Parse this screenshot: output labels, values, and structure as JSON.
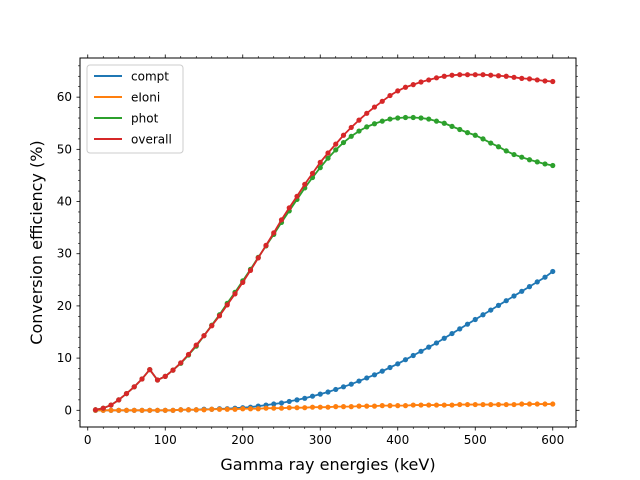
{
  "chart_data": {
    "type": "line",
    "xlabel": "Gamma ray energies (keV)",
    "ylabel": "Conversion efficiency (%)",
    "xlim": [
      -10,
      630
    ],
    "ylim": [
      -3.2,
      67.5
    ],
    "xticks": [
      "0",
      "100",
      "200",
      "300",
      "400",
      "500",
      "600"
    ],
    "yticks": [
      "0",
      "10",
      "20",
      "30",
      "40",
      "50",
      "60"
    ],
    "legend_position": "top-left",
    "grid": false,
    "x": [
      10,
      20,
      30,
      40,
      50,
      60,
      70,
      80,
      90,
      100,
      110,
      120,
      130,
      140,
      150,
      160,
      170,
      180,
      190,
      200,
      210,
      220,
      230,
      240,
      250,
      260,
      270,
      280,
      290,
      300,
      310,
      320,
      330,
      340,
      350,
      360,
      370,
      380,
      390,
      400,
      410,
      420,
      430,
      440,
      450,
      460,
      470,
      480,
      490,
      500,
      510,
      520,
      530,
      540,
      550,
      560,
      570,
      580,
      590,
      600
    ],
    "series": [
      {
        "name": "compt",
        "color": "#1f77b4",
        "values": [
          0.0,
          0.0,
          0.0,
          0.0,
          0.0,
          0.0,
          0.0,
          0.0,
          0.0,
          0.0,
          0.0,
          0.1,
          0.1,
          0.1,
          0.2,
          0.2,
          0.3,
          0.3,
          0.4,
          0.5,
          0.6,
          0.8,
          1.0,
          1.2,
          1.4,
          1.7,
          2.0,
          2.3,
          2.7,
          3.1,
          3.5,
          4.0,
          4.5,
          5.0,
          5.6,
          6.2,
          6.8,
          7.5,
          8.2,
          8.9,
          9.7,
          10.5,
          11.3,
          12.1,
          12.9,
          13.8,
          14.7,
          15.6,
          16.5,
          17.4,
          18.3,
          19.2,
          20.1,
          21.0,
          21.9,
          22.8,
          23.7,
          24.6,
          25.5,
          26.6
        ]
      },
      {
        "name": "eIoni",
        "color": "#ff7f0e",
        "values": [
          0.0,
          0.0,
          0.0,
          0.0,
          0.0,
          0.0,
          0.0,
          0.0,
          0.0,
          0.0,
          0.0,
          0.1,
          0.1,
          0.1,
          0.1,
          0.2,
          0.2,
          0.2,
          0.2,
          0.3,
          0.3,
          0.3,
          0.4,
          0.4,
          0.4,
          0.5,
          0.5,
          0.5,
          0.6,
          0.6,
          0.6,
          0.7,
          0.7,
          0.7,
          0.8,
          0.8,
          0.8,
          0.9,
          0.9,
          0.9,
          0.9,
          1.0,
          1.0,
          1.0,
          1.0,
          1.0,
          1.0,
          1.1,
          1.1,
          1.1,
          1.1,
          1.1,
          1.1,
          1.1,
          1.1,
          1.2,
          1.2,
          1.2,
          1.2,
          1.2
        ]
      },
      {
        "name": "phot",
        "color": "#2ca02c",
        "values": [
          0.1,
          0.4,
          1.0,
          2.0,
          3.2,
          4.5,
          6.0,
          7.8,
          5.8,
          6.5,
          7.7,
          9.0,
          10.6,
          12.3,
          14.3,
          16.3,
          18.3,
          20.5,
          22.6,
          24.8,
          27.0,
          29.3,
          31.5,
          33.7,
          36.0,
          38.2,
          40.4,
          42.6,
          44.6,
          46.5,
          48.3,
          49.9,
          51.3,
          52.5,
          53.5,
          54.3,
          54.9,
          55.4,
          55.8,
          56.0,
          56.1,
          56.1,
          56.0,
          55.8,
          55.4,
          55.0,
          54.4,
          53.8,
          53.2,
          52.7,
          52.0,
          51.2,
          50.5,
          49.7,
          49.0,
          48.5,
          48.0,
          47.6,
          47.2,
          46.9
        ]
      },
      {
        "name": "overall",
        "color": "#d62728",
        "values": [
          0.1,
          0.4,
          1.0,
          2.0,
          3.2,
          4.5,
          6.0,
          7.8,
          5.8,
          6.5,
          7.7,
          9.1,
          10.7,
          12.5,
          14.3,
          16.2,
          18.1,
          20.2,
          22.3,
          24.5,
          26.8,
          29.2,
          31.6,
          34.0,
          36.5,
          38.8,
          41.0,
          43.3,
          45.4,
          47.5,
          49.3,
          51.0,
          52.7,
          54.2,
          55.6,
          56.9,
          58.1,
          59.2,
          60.3,
          61.2,
          61.9,
          62.4,
          62.9,
          63.3,
          63.7,
          64.0,
          64.2,
          64.3,
          64.3,
          64.3,
          64.3,
          64.2,
          64.1,
          64.0,
          63.8,
          63.6,
          63.5,
          63.3,
          63.1,
          63.0
        ]
      }
    ]
  }
}
